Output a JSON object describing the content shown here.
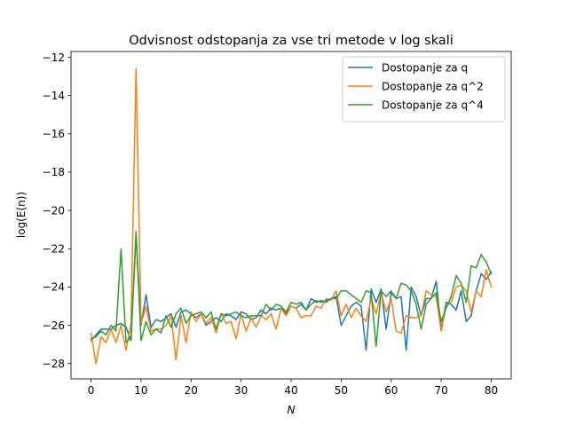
{
  "chart_data": {
    "type": "line",
    "title": "Odvisnost odstopanja  za vse tri metode v log skali",
    "xlabel": "N",
    "ylabel": "log(E(n))",
    "xlim": [
      -4,
      84
    ],
    "ylim": [
      -28.8,
      -11.7
    ],
    "xticks": [
      0,
      10,
      20,
      30,
      40,
      50,
      60,
      70,
      80
    ],
    "yticks": [
      -28,
      -26,
      -24,
      -22,
      -20,
      -18,
      -16,
      -14,
      -12
    ],
    "ytick_labels": [
      "−28",
      "−26",
      "−24",
      "−22",
      "−20",
      "−18",
      "−16",
      "−14",
      "−12"
    ],
    "grid": false,
    "legend_position": "top-right",
    "series": [
      {
        "name": "Dostopanje za q",
        "color": "#1f77b4",
        "values": [
          -26.8,
          -26.5,
          -26.2,
          -26.2,
          -26.2,
          -26.0,
          -25.9,
          -26.1,
          -26.8,
          -21.3,
          -26.0,
          -24.4,
          -26.1,
          -25.7,
          -25.8,
          -25.6,
          -25.4,
          -26.1,
          -25.3,
          -25.2,
          -25.4,
          -25.6,
          -25.4,
          -26.0,
          -25.8,
          -25.6,
          -25.8,
          -25.4,
          -25.5,
          -25.7,
          -25.3,
          -25.4,
          -25.7,
          -25.6,
          -25.2,
          -25.4,
          -25.1,
          -25.2,
          -25.1,
          -25.4,
          -25.0,
          -25.1,
          -24.9,
          -25.2,
          -24.6,
          -24.8,
          -24.7,
          -24.8,
          -24.6,
          -24.5,
          -26.0,
          -25.5,
          -25.0,
          -24.8,
          -25.0,
          -27.3,
          -24.1,
          -24.8,
          -24.1,
          -26.2,
          -24.3,
          -24.6,
          -24.5,
          -27.3,
          -24.0,
          -24.5,
          -25.5,
          -24.6,
          -24.6,
          -23.7,
          -26.2,
          -24.8,
          -24.9,
          -25.2,
          -24.2,
          -25.8,
          -25.5,
          -24.2,
          -23.3,
          -23.6,
          -23.2
        ]
      },
      {
        "name": "Dostopanje za q^2",
        "color": "#ff7f0e",
        "values": [
          -26.4,
          -28.0,
          -26.6,
          -26.9,
          -26.2,
          -26.9,
          -26.0,
          -27.3,
          -25.9,
          -12.6,
          -25.9,
          -25.0,
          -26.3,
          -26.2,
          -26.2,
          -26.0,
          -25.5,
          -27.8,
          -25.5,
          -26.9,
          -25.3,
          -25.8,
          -25.4,
          -25.9,
          -25.6,
          -26.4,
          -25.4,
          -25.9,
          -25.8,
          -26.7,
          -25.4,
          -26.3,
          -25.6,
          -26.1,
          -25.5,
          -25.7,
          -25.4,
          -26.2,
          -25.1,
          -25.5,
          -25.0,
          -25.1,
          -25.6,
          -25.5,
          -25.5,
          -25.0,
          -25.1,
          -24.6,
          -24.7,
          -24.2,
          -25.5,
          -24.9,
          -25.6,
          -25.1,
          -25.5,
          -25.8,
          -24.6,
          -25.4,
          -24.3,
          -25.3,
          -24.6,
          -26.3,
          -26.4,
          -25.5,
          -25.6,
          -25.6,
          -25.5,
          -24.2,
          -24.4,
          -24.5,
          -26.3,
          -25.0,
          -24.8,
          -24.0,
          -23.9,
          -24.2,
          -25.3,
          -24.2,
          -24.5,
          -23.1,
          -24.0
        ]
      },
      {
        "name": "Dostopanje za q^4",
        "color": "#2ca02c",
        "values": [
          -26.7,
          -26.6,
          -26.3,
          -26.5,
          -26.0,
          -26.3,
          -22.0,
          -26.9,
          -26.6,
          -21.1,
          -26.8,
          -25.8,
          -26.5,
          -26.2,
          -26.4,
          -25.5,
          -26.1,
          -25.4,
          -25.1,
          -25.9,
          -25.5,
          -25.4,
          -25.3,
          -25.6,
          -25.3,
          -26.2,
          -25.4,
          -25.5,
          -25.4,
          -25.3,
          -25.5,
          -25.6,
          -25.5,
          -25.5,
          -25.5,
          -24.9,
          -25.2,
          -24.9,
          -25.0,
          -25.3,
          -24.8,
          -24.9,
          -24.8,
          -25.2,
          -24.9,
          -24.7,
          -24.8,
          -24.7,
          -24.6,
          -24.6,
          -24.2,
          -24.2,
          -24.4,
          -24.6,
          -24.8,
          -24.2,
          -24.3,
          -27.1,
          -24.2,
          -24.5,
          -24.2,
          -24.6,
          -23.8,
          -23.9,
          -24.2,
          -24.9,
          -26.2,
          -24.9,
          -24.6,
          -24.3,
          -25.8,
          -25.1,
          -24.5,
          -23.4,
          -23.8,
          -24.8,
          -22.9,
          -23.0,
          -22.3,
          -22.7,
          -23.3
        ]
      }
    ]
  }
}
